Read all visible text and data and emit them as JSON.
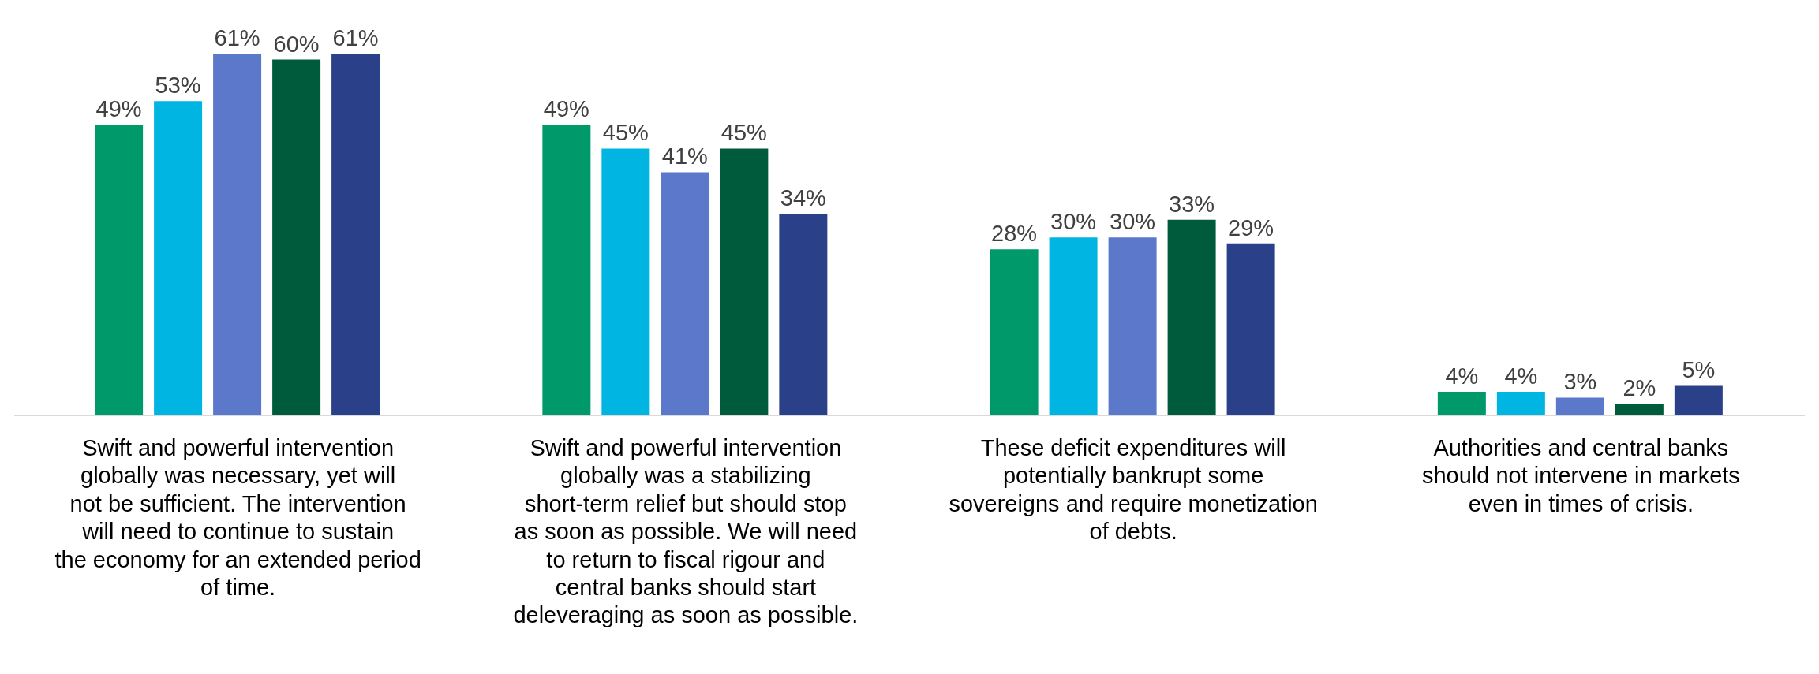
{
  "chart_data": {
    "type": "bar",
    "categories": [
      "Swift and powerful intervention globally was necessary, yet will not be sufficient. The intervention will need to continue to sustain the economy for an extended period of time.",
      "Swift and powerful intervention globally was a stabilizing short-term relief but should stop as soon as possible. We will need to return to fiscal rigour and central banks should start deleveraging as soon as possible.",
      "These deficit expenditures will potentially bankrupt some sovereigns and require monetization of debts.",
      "Authorities and central banks should not intervene in markets even in times of crisis."
    ],
    "series": [
      {
        "color": "#00996a",
        "values": [
          49,
          49,
          28,
          4
        ],
        "value_labels": [
          "49%",
          "49%",
          "28%",
          "4%"
        ]
      },
      {
        "color": "#00b5e2",
        "values": [
          53,
          45,
          30,
          4
        ],
        "value_labels": [
          "53%",
          "45%",
          "30%",
          "4%"
        ]
      },
      {
        "color": "#5b78cb",
        "values": [
          61,
          41,
          30,
          3
        ],
        "value_labels": [
          "61%",
          "41%",
          "30%",
          "3%"
        ]
      },
      {
        "color": "#005b3d",
        "values": [
          60,
          45,
          33,
          2
        ],
        "value_labels": [
          "60%",
          "45%",
          "33%",
          "2%"
        ]
      },
      {
        "color": "#2a4088",
        "values": [
          61,
          34,
          29,
          5
        ],
        "value_labels": [
          "61%",
          "34%",
          "29%",
          "5%"
        ]
      }
    ],
    "grid": false,
    "legend": false
  }
}
